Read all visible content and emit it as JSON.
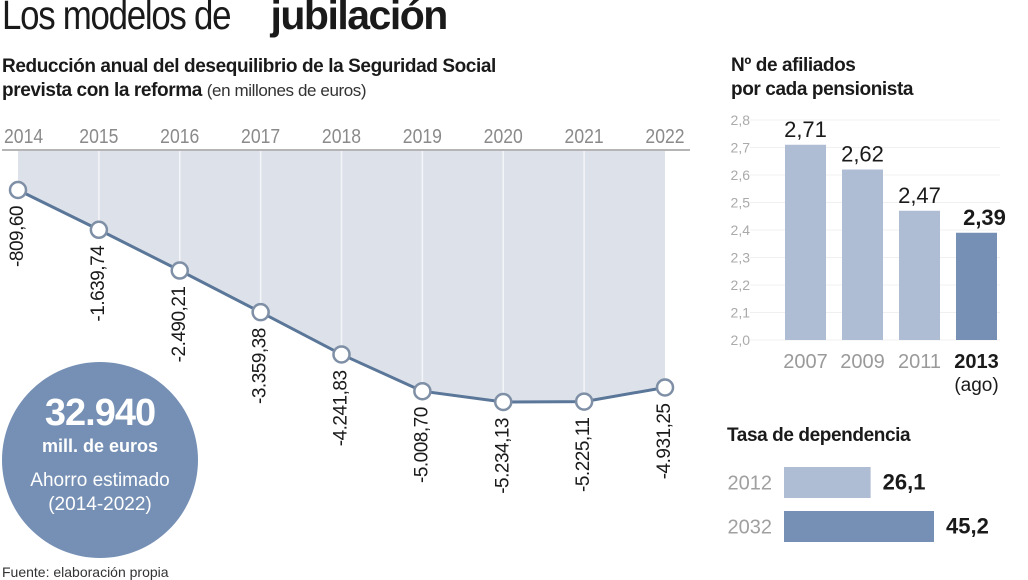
{
  "title": {
    "light": "Los modelos de",
    "bold": "jubilación"
  },
  "line_section": {
    "subtitle_line1": "Reducción anual del desequilibrio de la  Seguridad Social",
    "subtitle_line2": "prevista con la reforma",
    "subtitle_note": "(en millones de euros)"
  },
  "summary": {
    "value": "32.940",
    "unit": "mill. de euros",
    "label": "Ahorro estimado",
    "period": "(2014-2022)"
  },
  "bars_section": {
    "title_line1": "Nº de afiliados",
    "title_line2": "por cada pensionista"
  },
  "dependency_section": {
    "title": "Tasa de dependencia"
  },
  "source": "Fuente: elaboración propia",
  "colors": {
    "fill": "#dde2ea",
    "line": "#5a7698",
    "bar_light": "#afbdd4",
    "bar_dark": "#7590b4",
    "circle": "#7590b4"
  },
  "chart_data": [
    {
      "type": "line",
      "title": "Reducción anual del desequilibrio de la Seguridad Social prevista con la reforma",
      "ylabel": "millones de euros",
      "categories": [
        "2014",
        "2015",
        "2016",
        "2017",
        "2018",
        "2019",
        "2020",
        "2021",
        "2022"
      ],
      "values": [
        -809.6,
        -1639.74,
        -2490.21,
        -3359.38,
        -4241.83,
        -5008.7,
        -5234.13,
        -5225.11,
        -4931.25
      ],
      "labels": [
        "-809,60",
        "-1.639,74",
        "-2.490,21",
        "-3.359,38",
        "-4.241,83",
        "-5.008,70",
        "-5.234,13",
        "-5.225,11",
        "-4.931,25"
      ],
      "ylim": [
        -5500,
        0
      ],
      "grid": true
    },
    {
      "type": "bar",
      "title": "Nº de afiliados por cada pensionista",
      "categories": [
        "2007",
        "2009",
        "2011",
        "2013"
      ],
      "category_notes": [
        "",
        "",
        "",
        "(ago)"
      ],
      "highlight_index": 3,
      "values": [
        2.71,
        2.62,
        2.47,
        2.39
      ],
      "labels": [
        "2,71",
        "2,62",
        "2,47",
        "2,39"
      ],
      "yticks": [
        "2.0",
        "2.1",
        "2.2",
        "2.3",
        "2.4",
        "2.5",
        "2.6",
        "2.7",
        "2.8"
      ],
      "ylim": [
        2.0,
        2.8
      ],
      "grid": true
    },
    {
      "type": "bar",
      "orientation": "horizontal",
      "title": "Tasa de dependencia",
      "categories": [
        "2012",
        "2032"
      ],
      "values": [
        26.1,
        45.2
      ],
      "labels": [
        "26,1",
        "45,2"
      ],
      "xlim": [
        0,
        45.2
      ]
    }
  ]
}
